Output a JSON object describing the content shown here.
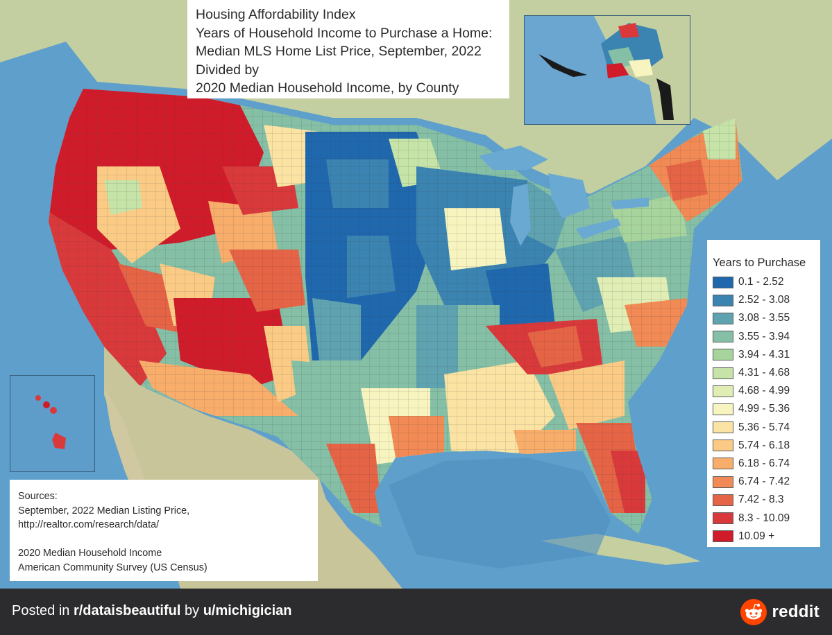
{
  "title_lines": [
    "Housing Affordability Index",
    "Years of Household Income to Purchase a Home:",
    "Median MLS Home List Price, September, 2022",
    "Divided by",
    "2020 Median Household Income, by County"
  ],
  "legend": {
    "title": "Years to Purchase",
    "classes": [
      {
        "label": "0.1 - 2.52",
        "color": "#1f68ae"
      },
      {
        "label": "2.52 - 3.08",
        "color": "#3b84b1"
      },
      {
        "label": "3.08 - 3.55",
        "color": "#5fa3b0"
      },
      {
        "label": "3.55 - 3.94",
        "color": "#84bfa6"
      },
      {
        "label": "3.94 - 4.31",
        "color": "#a7d39d"
      },
      {
        "label": "4.31 - 4.68",
        "color": "#c6e3a8"
      },
      {
        "label": "4.68 - 4.99",
        "color": "#e0edb4"
      },
      {
        "label": "4.99 - 5.36",
        "color": "#f7f4c0"
      },
      {
        "label": "5.36 - 5.74",
        "color": "#fbe3a3"
      },
      {
        "label": "5.74 - 6.18",
        "color": "#fbcb86"
      },
      {
        "label": "6.18 - 6.74",
        "color": "#f8ad6b"
      },
      {
        "label": "6.74 - 7.42",
        "color": "#f18a54"
      },
      {
        "label": "7.42 - 8.3",
        "color": "#e66446"
      },
      {
        "label": "8.3 - 10.09",
        "color": "#d9393b"
      },
      {
        "label": "10.09 +",
        "color": "#d01c2a"
      }
    ]
  },
  "sources_lines": [
    "Sources:",
    "September, 2022 Median Listing Price,",
    "http://realtor.com/research/data/",
    "",
    "2020 Median Household Income",
    "American Community Survey (US Census)"
  ],
  "footer": {
    "prefix": "Posted in ",
    "subreddit": "r/dataisbeautiful",
    "middle": " by ",
    "user": "u/michigician",
    "brand": "reddit"
  },
  "colors": {
    "ocean": "#5f9fcb",
    "land": "#c7d2a6",
    "footer_bg": "#2c2c2e",
    "brand": "#ff4500"
  },
  "icons": [
    "reddit-snoo-icon"
  ]
}
